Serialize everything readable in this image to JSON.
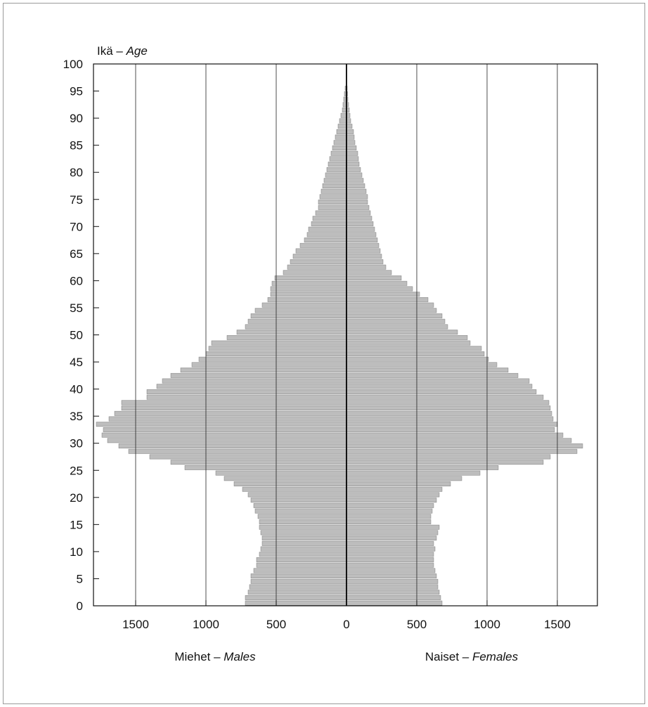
{
  "chart_data": {
    "type": "bar",
    "orientation": "horizontal-population-pyramid",
    "ylabel_fi": "Ikä",
    "ylabel_sep": " – ",
    "ylabel_en": "Age",
    "left_label_fi": "Miehet",
    "left_label_en": "Males",
    "right_label_fi": "Naiset",
    "right_label_en": "Females",
    "label_sep": " – ",
    "x_ticks": [
      1500,
      1000,
      500,
      0,
      500,
      1000,
      1500
    ],
    "y_ticks": [
      0,
      5,
      10,
      15,
      20,
      25,
      30,
      35,
      40,
      45,
      50,
      55,
      60,
      65,
      70,
      75,
      80,
      85,
      90,
      95,
      100
    ],
    "xlim": [
      -1800,
      1800
    ],
    "ylim": [
      0,
      100
    ],
    "grid": "vertical",
    "ages": [
      0,
      1,
      2,
      3,
      4,
      5,
      6,
      7,
      8,
      9,
      10,
      11,
      12,
      13,
      14,
      15,
      16,
      17,
      18,
      19,
      20,
      21,
      22,
      23,
      24,
      25,
      26,
      27,
      28,
      29,
      30,
      31,
      32,
      33,
      34,
      35,
      36,
      37,
      38,
      39,
      40,
      41,
      42,
      43,
      44,
      45,
      46,
      47,
      48,
      49,
      50,
      51,
      52,
      53,
      54,
      55,
      56,
      57,
      58,
      59,
      60,
      61,
      62,
      63,
      64,
      65,
      66,
      67,
      68,
      69,
      70,
      71,
      72,
      73,
      74,
      75,
      76,
      77,
      78,
      79,
      80,
      81,
      82,
      83,
      84,
      85,
      86,
      87,
      88,
      89,
      90,
      91,
      92,
      93,
      94,
      95
    ],
    "series": [
      {
        "name": "Miehet – Males",
        "values": [
          720,
          720,
          700,
          690,
          680,
          680,
          660,
          640,
          640,
          620,
          610,
          600,
          600,
          610,
          620,
          620,
          630,
          650,
          660,
          680,
          700,
          740,
          800,
          870,
          930,
          1150,
          1250,
          1400,
          1550,
          1620,
          1700,
          1740,
          1730,
          1780,
          1690,
          1650,
          1600,
          1600,
          1420,
          1420,
          1350,
          1310,
          1250,
          1180,
          1100,
          1050,
          1000,
          980,
          960,
          850,
          780,
          720,
          700,
          680,
          650,
          600,
          560,
          540,
          540,
          530,
          510,
          450,
          420,
          400,
          380,
          360,
          330,
          300,
          280,
          270,
          250,
          240,
          220,
          200,
          200,
          190,
          180,
          170,
          160,
          150,
          140,
          130,
          120,
          110,
          100,
          90,
          80,
          70,
          60,
          50,
          40,
          30,
          25,
          20,
          15,
          10
        ]
      },
      {
        "name": "Naiset – Females",
        "values": [
          680,
          670,
          660,
          650,
          650,
          640,
          630,
          620,
          620,
          620,
          630,
          620,
          640,
          650,
          660,
          600,
          600,
          610,
          620,
          640,
          660,
          680,
          740,
          820,
          950,
          1080,
          1400,
          1450,
          1640,
          1680,
          1600,
          1540,
          1480,
          1500,
          1470,
          1460,
          1450,
          1440,
          1400,
          1350,
          1320,
          1300,
          1220,
          1150,
          1070,
          1010,
          980,
          960,
          880,
          860,
          790,
          720,
          700,
          680,
          640,
          620,
          580,
          520,
          470,
          430,
          390,
          320,
          280,
          260,
          250,
          240,
          230,
          220,
          210,
          200,
          190,
          180,
          170,
          160,
          150,
          150,
          140,
          130,
          120,
          110,
          100,
          90,
          85,
          80,
          70,
          60,
          55,
          50,
          40,
          30,
          25,
          20,
          15,
          10,
          8,
          5
        ]
      }
    ]
  }
}
